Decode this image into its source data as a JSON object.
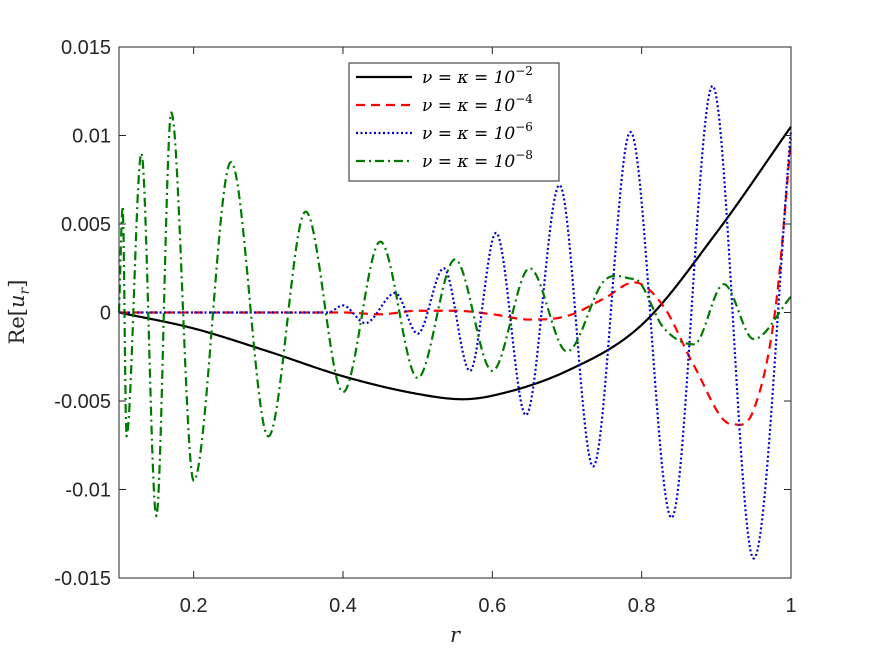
{
  "chart_data": {
    "type": "line",
    "xlabel": "r",
    "ylabel": "Re[u_r]",
    "xlim": [
      0.1,
      1
    ],
    "ylim": [
      -0.015,
      0.015
    ],
    "x_ticks": [
      "0.2",
      "0.4",
      "0.6",
      "0.8",
      "1"
    ],
    "y_ticks": [
      "0.015",
      "0.01",
      "0.005",
      "0",
      "-0.005",
      "-0.01",
      "-0.015"
    ],
    "legend_placement": "top-center",
    "grid": false,
    "series": [
      {
        "name": "ν = κ = 10^-2",
        "legend_base": "ν = κ = 10",
        "legend_exp": "−2",
        "color": "#000000",
        "style": "solid",
        "x": [
          0.1,
          0.2,
          0.3,
          0.4,
          0.5,
          0.56,
          0.6,
          0.7,
          0.8,
          0.9,
          1.0
        ],
        "y": [
          0.0,
          -0.0009,
          -0.0022,
          -0.0036,
          -0.0046,
          -0.0049,
          -0.0047,
          -0.0033,
          -0.0007,
          0.0045,
          0.0105
        ]
      },
      {
        "name": "ν = κ = 10^-4",
        "legend_base": "ν = κ = 10",
        "legend_exp": "−4",
        "color": "#ff0000",
        "style": "dashed",
        "x": [
          0.1,
          0.3,
          0.4,
          0.45,
          0.5,
          0.55,
          0.6,
          0.65,
          0.7,
          0.75,
          0.79,
          0.83,
          0.87,
          0.92,
          0.95,
          0.98,
          1.0
        ],
        "y": [
          0.0,
          0.0,
          0.0,
          -0.0001,
          0.0001,
          0.0001,
          -0.0001,
          -0.0004,
          -0.0002,
          0.0008,
          0.0017,
          0.0003,
          -0.003,
          -0.0063,
          -0.0055,
          0.0005,
          0.0098
        ]
      },
      {
        "name": "ν = κ = 10^-6",
        "legend_base": "ν = κ = 10",
        "legend_exp": "−6",
        "color": "#0000cd",
        "style": "dotted",
        "x": [
          0.1,
          0.3,
          0.38,
          0.4,
          0.43,
          0.47,
          0.5,
          0.535,
          0.57,
          0.605,
          0.645,
          0.69,
          0.735,
          0.785,
          0.84,
          0.895,
          0.95,
          1.0
        ],
        "y": [
          0.0,
          0.0,
          0.0,
          0.0004,
          -0.0006,
          0.0011,
          -0.0012,
          0.0025,
          -0.0033,
          0.0045,
          -0.0058,
          0.0072,
          -0.0087,
          0.0102,
          -0.0116,
          0.0128,
          -0.0139,
          0.0103
        ]
      },
      {
        "name": "ν = κ = 10^-8",
        "legend_base": "ν = κ = 10",
        "legend_exp": "−8",
        "color": "#007a00",
        "style": "dashdot",
        "x": [
          0.1,
          0.105,
          0.11,
          0.13,
          0.15,
          0.17,
          0.2,
          0.25,
          0.3,
          0.35,
          0.4,
          0.45,
          0.5,
          0.55,
          0.6,
          0.65,
          0.7,
          0.75,
          0.79,
          0.83,
          0.87,
          0.91,
          0.95,
          1.0
        ],
        "y": [
          0.0,
          0.006,
          -0.007,
          0.009,
          -0.0115,
          0.0113,
          -0.0095,
          0.0085,
          -0.007,
          0.0057,
          -0.0045,
          0.004,
          -0.0037,
          0.003,
          -0.0033,
          0.0025,
          -0.0022,
          0.0018,
          0.0019,
          -0.0009,
          -0.0018,
          0.0016,
          -0.0015,
          0.0009
        ]
      }
    ]
  }
}
